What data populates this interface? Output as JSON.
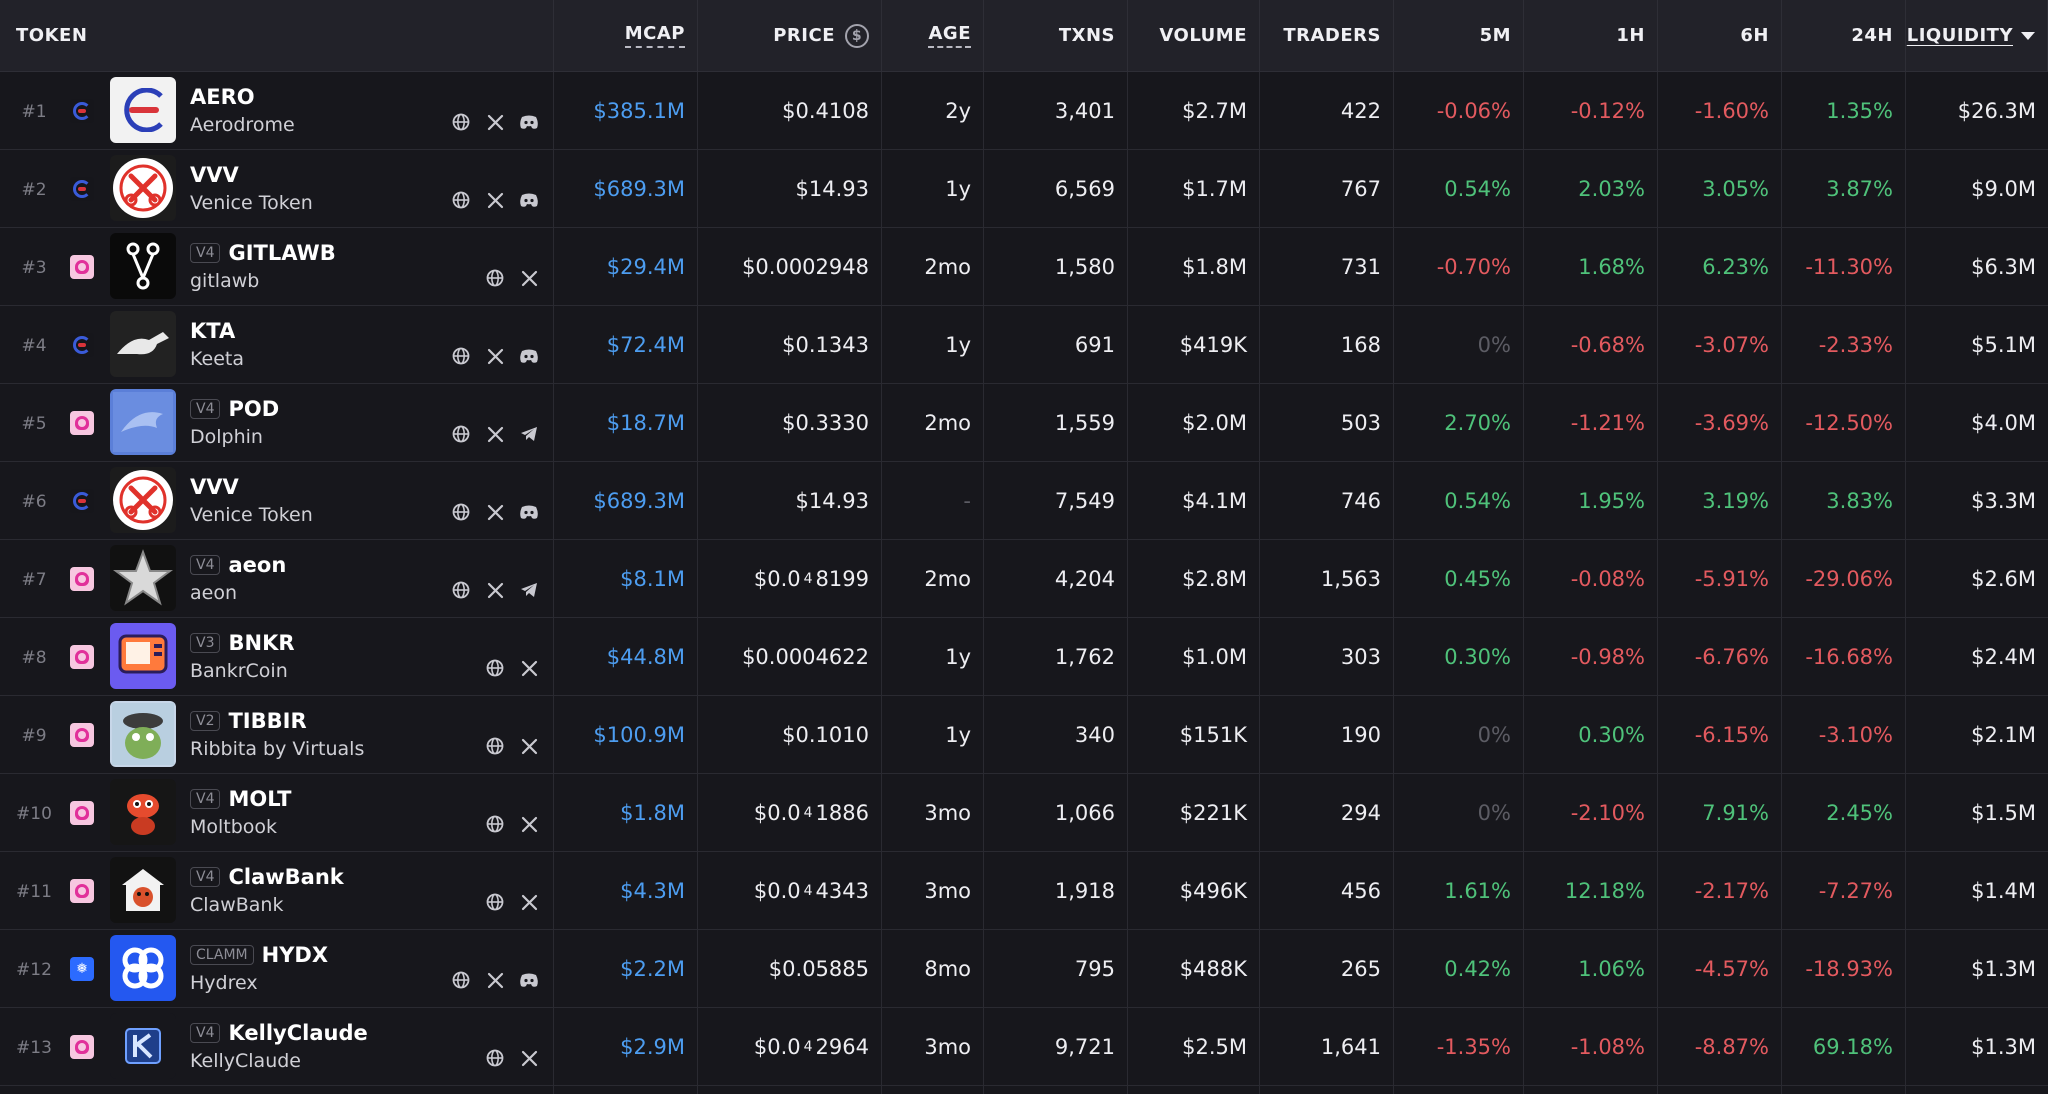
{
  "header": {
    "token": "TOKEN",
    "mcap": "MCAP",
    "price": "PRICE",
    "age": "AGE",
    "txns": "TXNS",
    "volume": "VOLUME",
    "traders": "TRADERS",
    "m5": "5M",
    "h1": "1H",
    "h6": "6H",
    "h24": "24H",
    "liquidity": "LIQUIDITY"
  },
  "rows": [
    {
      "rank": "#1",
      "chain": "base",
      "version": "",
      "symbol": "AERO",
      "name": "Aerodrome",
      "logo": "aero",
      "socials": [
        "web",
        "x",
        "discord"
      ],
      "mcap": "$385.1M",
      "price_main": "$0.4108",
      "price_sub": "",
      "price_tail": "",
      "age": "2y",
      "txns": "3,401",
      "volume": "$2.7M",
      "traders": "422",
      "m5": "-0.06%",
      "m5_dir": "neg",
      "h1": "-0.12%",
      "h1_dir": "neg",
      "h6": "-1.60%",
      "h6_dir": "neg",
      "h24": "1.35%",
      "h24_dir": "pos",
      "liquidity": "$26.3M"
    },
    {
      "rank": "#2",
      "chain": "base",
      "version": "",
      "symbol": "VVV",
      "name": "Venice Token",
      "logo": "venice",
      "socials": [
        "web",
        "x",
        "discord"
      ],
      "mcap": "$689.3M",
      "price_main": "$14.93",
      "price_sub": "",
      "price_tail": "",
      "age": "1y",
      "txns": "6,569",
      "volume": "$1.7M",
      "traders": "767",
      "m5": "0.54%",
      "m5_dir": "pos",
      "h1": "2.03%",
      "h1_dir": "pos",
      "h6": "3.05%",
      "h6_dir": "pos",
      "h24": "3.87%",
      "h24_dir": "pos",
      "liquidity": "$9.0M"
    },
    {
      "rank": "#3",
      "chain": "uni",
      "version": "V4",
      "symbol": "GITLAWB",
      "name": "gitlawb",
      "logo": "git",
      "socials": [
        "web",
        "x"
      ],
      "mcap": "$29.4M",
      "price_main": "$0.0002948",
      "price_sub": "",
      "price_tail": "",
      "age": "2mo",
      "txns": "1,580",
      "volume": "$1.8M",
      "traders": "731",
      "m5": "-0.70%",
      "m5_dir": "neg",
      "h1": "1.68%",
      "h1_dir": "pos",
      "h6": "6.23%",
      "h6_dir": "pos",
      "h24": "-11.30%",
      "h24_dir": "neg",
      "liquidity": "$6.3M"
    },
    {
      "rank": "#4",
      "chain": "base",
      "version": "",
      "symbol": "KTA",
      "name": "Keeta",
      "logo": "keeta",
      "socials": [
        "web",
        "x",
        "discord"
      ],
      "mcap": "$72.4M",
      "price_main": "$0.1343",
      "price_sub": "",
      "price_tail": "",
      "age": "1y",
      "txns": "691",
      "volume": "$419K",
      "traders": "168",
      "m5": "0%",
      "m5_dir": "zero",
      "h1": "-0.68%",
      "h1_dir": "neg",
      "h6": "-3.07%",
      "h6_dir": "neg",
      "h24": "-2.33%",
      "h24_dir": "neg",
      "liquidity": "$5.1M"
    },
    {
      "rank": "#5",
      "chain": "uni",
      "version": "V4",
      "symbol": "POD",
      "name": "Dolphin",
      "logo": "dolphin",
      "socials": [
        "web",
        "x",
        "telegram"
      ],
      "mcap": "$18.7M",
      "price_main": "$0.3330",
      "price_sub": "",
      "price_tail": "",
      "age": "2mo",
      "txns": "1,559",
      "volume": "$2.0M",
      "traders": "503",
      "m5": "2.70%",
      "m5_dir": "pos",
      "h1": "-1.21%",
      "h1_dir": "neg",
      "h6": "-3.69%",
      "h6_dir": "neg",
      "h24": "-12.50%",
      "h24_dir": "neg",
      "liquidity": "$4.0M"
    },
    {
      "rank": "#6",
      "chain": "base",
      "version": "",
      "symbol": "VVV",
      "name": "Venice Token",
      "logo": "venice",
      "socials": [
        "web",
        "x",
        "discord"
      ],
      "mcap": "$689.3M",
      "price_main": "$14.93",
      "price_sub": "",
      "price_tail": "",
      "age": "-",
      "txns": "7,549",
      "volume": "$4.1M",
      "traders": "746",
      "m5": "0.54%",
      "m5_dir": "pos",
      "h1": "1.95%",
      "h1_dir": "pos",
      "h6": "3.19%",
      "h6_dir": "pos",
      "h24": "3.83%",
      "h24_dir": "pos",
      "liquidity": "$3.3M"
    },
    {
      "rank": "#7",
      "chain": "uni",
      "version": "V4",
      "symbol": "aeon",
      "name": "aeon",
      "logo": "star",
      "socials": [
        "web",
        "x",
        "telegram"
      ],
      "mcap": "$8.1M",
      "price_main": "$0.0",
      "price_sub": "4",
      "price_tail": "8199",
      "age": "2mo",
      "txns": "4,204",
      "volume": "$2.8M",
      "traders": "1,563",
      "m5": "0.45%",
      "m5_dir": "pos",
      "h1": "-0.08%",
      "h1_dir": "neg",
      "h6": "-5.91%",
      "h6_dir": "neg",
      "h24": "-29.06%",
      "h24_dir": "neg",
      "liquidity": "$2.6M"
    },
    {
      "rank": "#8",
      "chain": "uni",
      "version": "V3",
      "symbol": "BNKR",
      "name": "BankrCoin",
      "logo": "bankr",
      "socials": [
        "web",
        "x"
      ],
      "mcap": "$44.8M",
      "price_main": "$0.0004622",
      "price_sub": "",
      "price_tail": "",
      "age": "1y",
      "txns": "1,762",
      "volume": "$1.0M",
      "traders": "303",
      "m5": "0.30%",
      "m5_dir": "pos",
      "h1": "-0.98%",
      "h1_dir": "neg",
      "h6": "-6.76%",
      "h6_dir": "neg",
      "h24": "-16.68%",
      "h24_dir": "neg",
      "liquidity": "$2.4M"
    },
    {
      "rank": "#9",
      "chain": "uni",
      "version": "V2",
      "symbol": "TIBBIR",
      "name": "Ribbita by Virtuals",
      "logo": "tibbir",
      "socials": [
        "web",
        "x"
      ],
      "mcap": "$100.9M",
      "price_main": "$0.1010",
      "price_sub": "",
      "price_tail": "",
      "age": "1y",
      "txns": "340",
      "volume": "$151K",
      "traders": "190",
      "m5": "0%",
      "m5_dir": "zero",
      "h1": "0.30%",
      "h1_dir": "pos",
      "h6": "-6.15%",
      "h6_dir": "neg",
      "h24": "-3.10%",
      "h24_dir": "neg",
      "liquidity": "$2.1M"
    },
    {
      "rank": "#10",
      "chain": "uni",
      "version": "V4",
      "symbol": "MOLT",
      "name": "Moltbook",
      "logo": "molt",
      "socials": [
        "web",
        "x"
      ],
      "mcap": "$1.8M",
      "price_main": "$0.0",
      "price_sub": "4",
      "price_tail": "1886",
      "age": "3mo",
      "txns": "1,066",
      "volume": "$221K",
      "traders": "294",
      "m5": "0%",
      "m5_dir": "zero",
      "h1": "-2.10%",
      "h1_dir": "neg",
      "h6": "7.91%",
      "h6_dir": "pos",
      "h24": "2.45%",
      "h24_dir": "pos",
      "liquidity": "$1.5M"
    },
    {
      "rank": "#11",
      "chain": "uni",
      "version": "V4",
      "symbol": "ClawBank",
      "name": "ClawBank",
      "logo": "claw",
      "socials": [
        "web",
        "x"
      ],
      "mcap": "$4.3M",
      "price_main": "$0.0",
      "price_sub": "4",
      "price_tail": "4343",
      "age": "3mo",
      "txns": "1,918",
      "volume": "$496K",
      "traders": "456",
      "m5": "1.61%",
      "m5_dir": "pos",
      "h1": "12.18%",
      "h1_dir": "pos",
      "h6": "-2.17%",
      "h6_dir": "neg",
      "h24": "-7.27%",
      "h24_dir": "neg",
      "liquidity": "$1.4M"
    },
    {
      "rank": "#12",
      "chain": "blue",
      "version": "CLAMM",
      "symbol": "HYDX",
      "name": "Hydrex",
      "logo": "hydx",
      "socials": [
        "web",
        "x",
        "discord"
      ],
      "mcap": "$2.2M",
      "price_main": "$0.05885",
      "price_sub": "",
      "price_tail": "",
      "age": "8mo",
      "txns": "795",
      "volume": "$488K",
      "traders": "265",
      "m5": "0.42%",
      "m5_dir": "pos",
      "h1": "1.06%",
      "h1_dir": "pos",
      "h6": "-4.57%",
      "h6_dir": "neg",
      "h24": "-18.93%",
      "h24_dir": "neg",
      "liquidity": "$1.3M"
    },
    {
      "rank": "#13",
      "chain": "uni",
      "version": "V4",
      "symbol": "KellyClaude",
      "name": "KellyClaude",
      "logo": "kelly",
      "socials": [
        "web",
        "x"
      ],
      "mcap": "$2.9M",
      "price_main": "$0.0",
      "price_sub": "4",
      "price_tail": "2964",
      "age": "3mo",
      "txns": "9,721",
      "volume": "$2.5M",
      "traders": "1,641",
      "m5": "-1.35%",
      "m5_dir": "neg",
      "h1": "-1.08%",
      "h1_dir": "neg",
      "h6": "-8.87%",
      "h6_dir": "neg",
      "h24": "69.18%",
      "h24_dir": "pos",
      "liquidity": "$1.3M"
    }
  ]
}
